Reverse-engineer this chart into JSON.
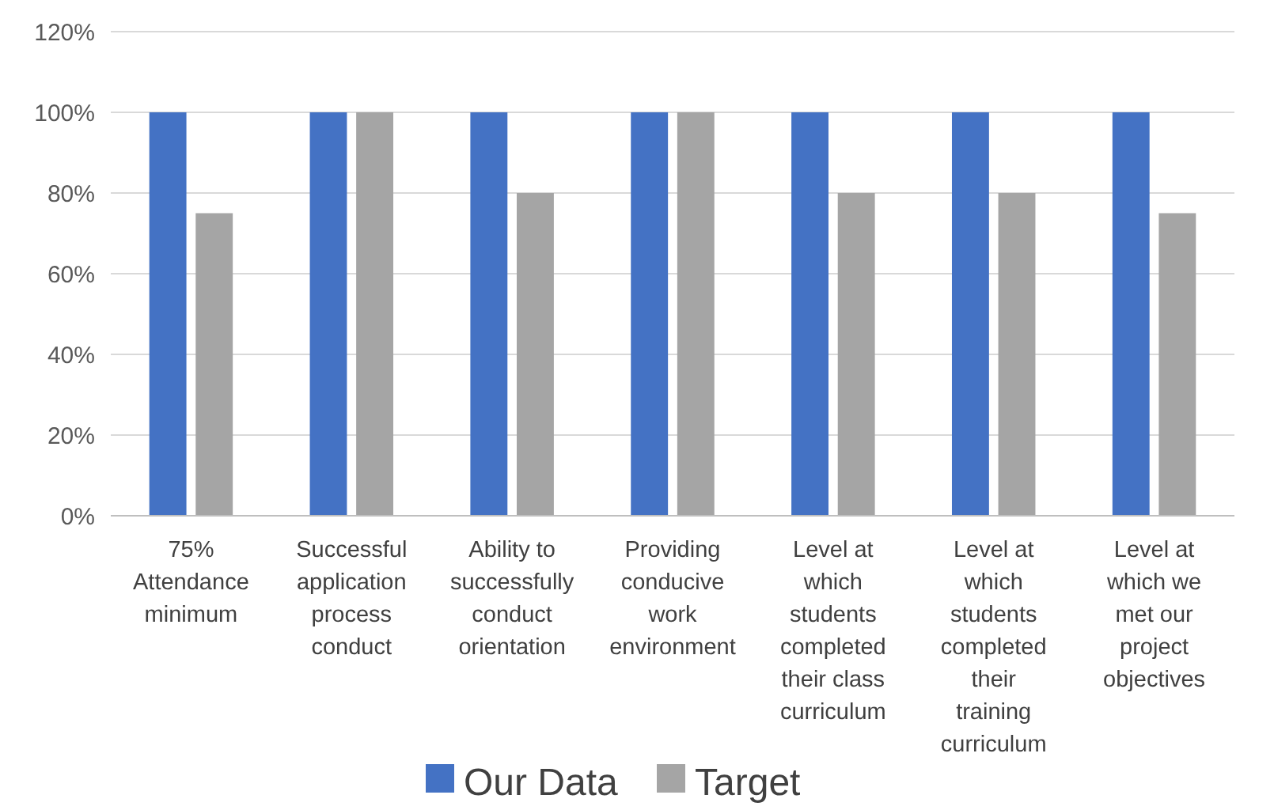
{
  "chart_data": {
    "type": "bar",
    "categories": [
      "75% Attendance minimum",
      "Successful application process conduct",
      "Ability to successfully conduct orientation",
      "Providing conducive work environment",
      "Level at which students completed their class curriculum",
      "Level at which students completed their training curriculum",
      "Level at which we met our project objectives"
    ],
    "series": [
      {
        "name": "Our Data",
        "color": "#4472c4",
        "values": [
          100,
          100,
          100,
          100,
          100,
          100,
          100
        ]
      },
      {
        "name": "Target",
        "color": "#a5a5a5",
        "values": [
          75,
          100,
          80,
          100,
          80,
          80,
          75
        ]
      }
    ],
    "ylim": [
      0,
      120
    ],
    "yticks": [
      {
        "value": 0,
        "label": "0%"
      },
      {
        "value": 20,
        "label": "20%"
      },
      {
        "value": 40,
        "label": "40%"
      },
      {
        "value": 60,
        "label": "60%"
      },
      {
        "value": 80,
        "label": "80%"
      },
      {
        "value": 100,
        "label": "100%"
      },
      {
        "value": 120,
        "label": "120%"
      }
    ],
    "grid": "y",
    "legend": "bottom"
  }
}
